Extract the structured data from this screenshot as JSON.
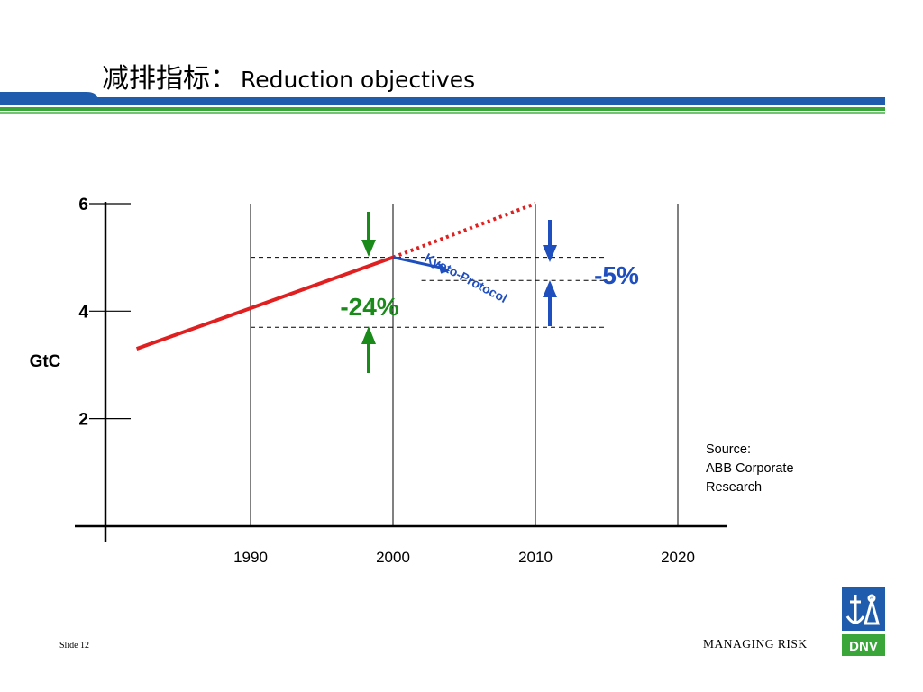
{
  "slide": {
    "title_zh": "减排指标：",
    "title_en": "Reduction objectives",
    "slide_number": "Slide 12",
    "tagline": "MANAGING RISK",
    "logo_text": "DNV",
    "brand_colors": {
      "blue": "#1f5cad",
      "green": "#3aa63a"
    }
  },
  "chart_data": {
    "type": "line",
    "ylabel": "GtC",
    "xlabel": "",
    "y_ticks": [
      2,
      4,
      6
    ],
    "x_ticks": [
      1990,
      2000,
      2010,
      2020
    ],
    "ylim": [
      0,
      6
    ],
    "series": [
      {
        "type": "solid",
        "color": "#e02020",
        "x": [
          1982,
          2000
        ],
        "y": [
          3.3,
          5.0
        ]
      },
      {
        "type": "dotted",
        "color": "#e02020",
        "x": [
          2000,
          2010
        ],
        "y": [
          5.0,
          6.0
        ]
      },
      {
        "type": "arrow",
        "color": "#1f4fbf",
        "x": [
          2000,
          2004
        ],
        "y": [
          5.0,
          4.75
        ]
      }
    ],
    "reference_lines": [
      {
        "y": 5.0,
        "x": [
          1990,
          2015
        ]
      },
      {
        "y": 4.57,
        "x": [
          2002,
          2015
        ]
      },
      {
        "y": 3.7,
        "x": [
          1990,
          2015
        ]
      }
    ],
    "annotations": {
      "kyoto_label": "Kyoto-Protocol",
      "reduction_24": "-24%",
      "reduction_5": "-5%",
      "green_color": "#1a8a1a",
      "blue_color": "#1f4fbf"
    },
    "source_lines": [
      "Source:",
      "ABB Corporate",
      "Research"
    ]
  }
}
